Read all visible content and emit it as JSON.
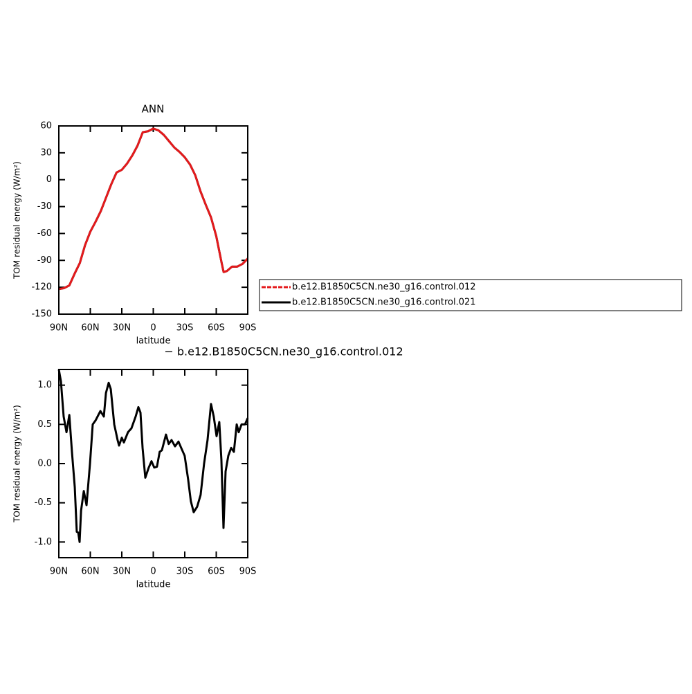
{
  "chart_data": [
    {
      "type": "line",
      "title": "ANN",
      "xlabel": "latitude",
      "ylabel": "TOM residual energy (W/m²)",
      "x": [
        90,
        85,
        80,
        75,
        70,
        65,
        60,
        55,
        50,
        45,
        40,
        35,
        30,
        25,
        20,
        15,
        10,
        5,
        0,
        -5,
        -10,
        -15,
        -20,
        -25,
        -30,
        -35,
        -40,
        -45,
        -50,
        -55,
        -60,
        -65,
        -67,
        -70,
        -75,
        -80,
        -85,
        -90
      ],
      "series": [
        {
          "name": "b.e12.B1850C5CN.ne30_g16.control.021",
          "color": "#000000",
          "values": [
            -122,
            -121,
            -118,
            -105,
            -93,
            -73,
            -58,
            -47,
            -35,
            -20,
            -5,
            8,
            11,
            18,
            27,
            38,
            53,
            54,
            57,
            55,
            50,
            43,
            36,
            31,
            25,
            17,
            5,
            -13,
            -28,
            -42,
            -63,
            -92,
            -103,
            -102,
            -97,
            -97,
            -94,
            -88
          ]
        },
        {
          "name": "b.e12.B1850C5CN.ne30_g16.control.012",
          "color": "#e41a1c",
          "values": [
            -122,
            -121,
            -118,
            -105,
            -93,
            -73,
            -58,
            -47,
            -35,
            -20,
            -5,
            8,
            11,
            18,
            27,
            38,
            53,
            54,
            57,
            55,
            50,
            43,
            36,
            31,
            25,
            17,
            5,
            -13,
            -28,
            -42,
            -63,
            -92,
            -103,
            -102,
            -97,
            -97,
            -94,
            -88
          ]
        }
      ],
      "xlim": [
        90,
        -90
      ],
      "xticks": [
        {
          "value": 90,
          "label": "90N"
        },
        {
          "value": 60,
          "label": "60N"
        },
        {
          "value": 30,
          "label": "30N"
        },
        0,
        {
          "value": -30,
          "label": "30S"
        },
        {
          "value": -60,
          "label": "60S"
        },
        {
          "value": -90,
          "label": "90S"
        }
      ],
      "ylim": [
        -150,
        60
      ],
      "yticks": [
        -150,
        -120,
        -90,
        -60,
        -30,
        0,
        30,
        60
      ],
      "legend": "right"
    },
    {
      "type": "line",
      "title": "− b.e12.B1850C5CN.ne30_g16.control.012",
      "xlabel": "latitude",
      "ylabel": "TOM residual energy (W/m²)",
      "x": [
        90,
        88,
        85.4,
        82.7,
        80,
        77.5,
        74.8,
        72.9,
        71.5,
        70.2,
        68.8,
        66.2,
        63.6,
        60.3,
        57.7,
        55,
        50.4,
        47.1,
        45.1,
        42.5,
        40.5,
        37.2,
        34,
        32.6,
        30,
        28,
        24.1,
        20.8,
        16.8,
        14.2,
        12.2,
        10.2,
        7.6,
        4.3,
        1.7,
        -0.9,
        -3.5,
        -6.1,
        -8.2,
        -12.1,
        -14.7,
        -17.4,
        -20.7,
        -24,
        -26.6,
        -29.9,
        -33.2,
        -35.8,
        -38.5,
        -41.8,
        -45.1,
        -48.4,
        -51.7,
        -55,
        -57.6,
        -60.3,
        -62.9,
        -64.9,
        -66.9,
        -68.9,
        -71.5,
        -74.2,
        -76.8,
        -79.5,
        -81.4,
        -84.1,
        -87.4,
        -90
      ],
      "series": [
        {
          "color": "#000000",
          "values": [
            1.2,
            1.05,
            0.6,
            0.4,
            0.62,
            0.15,
            -0.3,
            -0.87,
            -0.88,
            -1.0,
            -0.6,
            -0.35,
            -0.53,
            0.0,
            0.5,
            0.55,
            0.67,
            0.6,
            0.9,
            1.03,
            0.95,
            0.5,
            0.3,
            0.23,
            0.33,
            0.27,
            0.4,
            0.45,
            0.6,
            0.72,
            0.65,
            0.2,
            -0.18,
            -0.05,
            0.03,
            -0.05,
            -0.04,
            0.15,
            0.17,
            0.37,
            0.25,
            0.3,
            0.22,
            0.28,
            0.2,
            0.1,
            -0.2,
            -0.48,
            -0.62,
            -0.55,
            -0.4,
            0.0,
            0.3,
            0.76,
            0.6,
            0.35,
            0.53,
            0.05,
            -0.82,
            -0.1,
            0.1,
            0.2,
            0.15,
            0.5,
            0.4,
            0.5,
            0.5,
            0.58
          ]
        }
      ],
      "xlim": [
        90,
        -90
      ],
      "xticks": [
        {
          "value": 90,
          "label": "90N"
        },
        {
          "value": 60,
          "label": "60N"
        },
        {
          "value": 30,
          "label": "30N"
        },
        0,
        {
          "value": -30,
          "label": "30S"
        },
        {
          "value": -60,
          "label": "60S"
        },
        {
          "value": -90,
          "label": "90S"
        }
      ],
      "ylim": [
        -1.2,
        1.2
      ],
      "yticks": [
        {
          "value": -1,
          "label": "-1.0"
        },
        -0.5,
        {
          "value": 0,
          "label": "0.0"
        },
        0.5,
        {
          "value": 1,
          "label": "1.0"
        }
      ]
    }
  ]
}
